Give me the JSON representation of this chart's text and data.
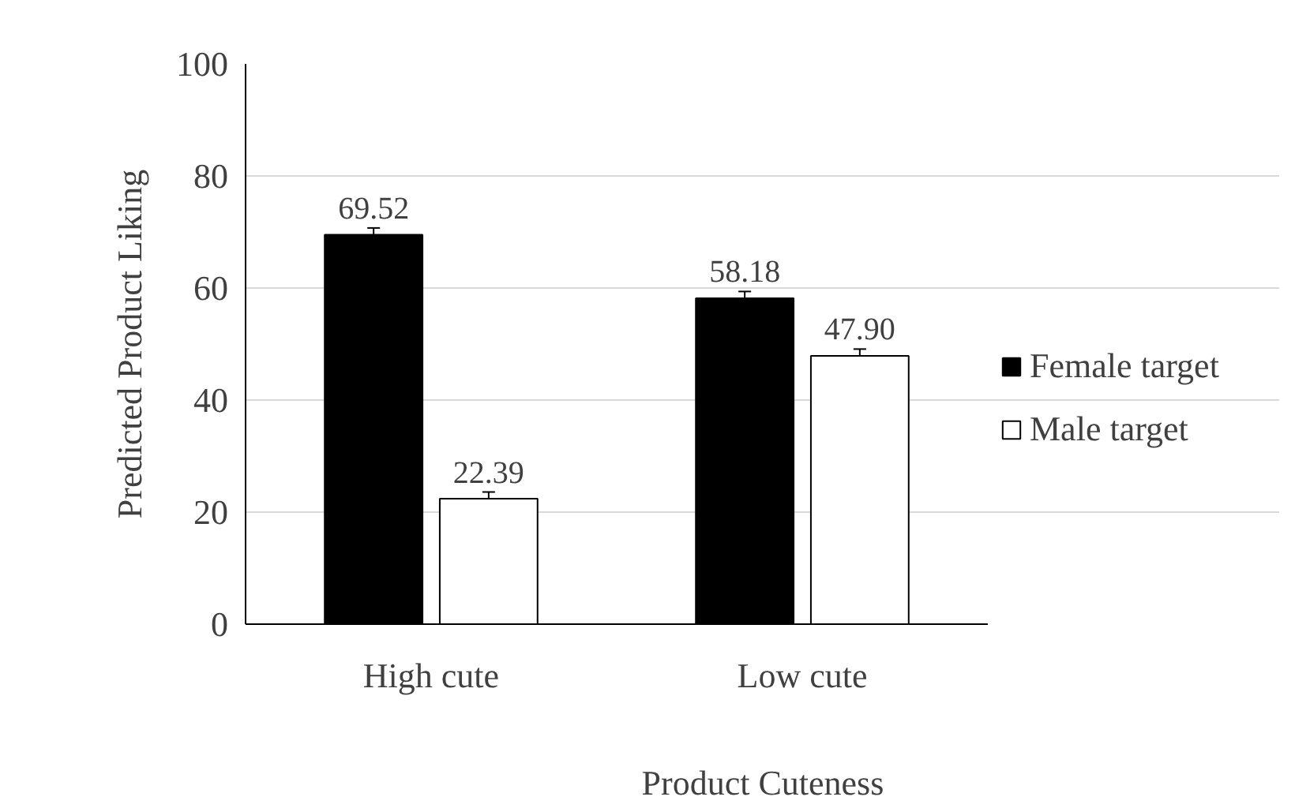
{
  "chart_data": {
    "type": "bar",
    "xlabel": "Product Cuteness",
    "ylabel": "Predicted Product Liking",
    "categories": [
      "High cute",
      "Low cute"
    ],
    "series": [
      {
        "name": "Female target",
        "color": "#000000",
        "values": [
          69.52,
          58.18
        ],
        "errors": [
          1.2,
          1.2
        ],
        "value_labels": [
          "69.52",
          "58.18"
        ]
      },
      {
        "name": "Male target",
        "color": "#ffffff",
        "values": [
          22.39,
          47.9
        ],
        "errors": [
          1.2,
          1.2
        ],
        "value_labels": [
          "22.39",
          "47.90"
        ]
      }
    ],
    "ylim": [
      0,
      100
    ],
    "yticks": [
      0,
      20,
      40,
      60,
      80,
      100
    ],
    "grid": "y",
    "legend": "right"
  }
}
